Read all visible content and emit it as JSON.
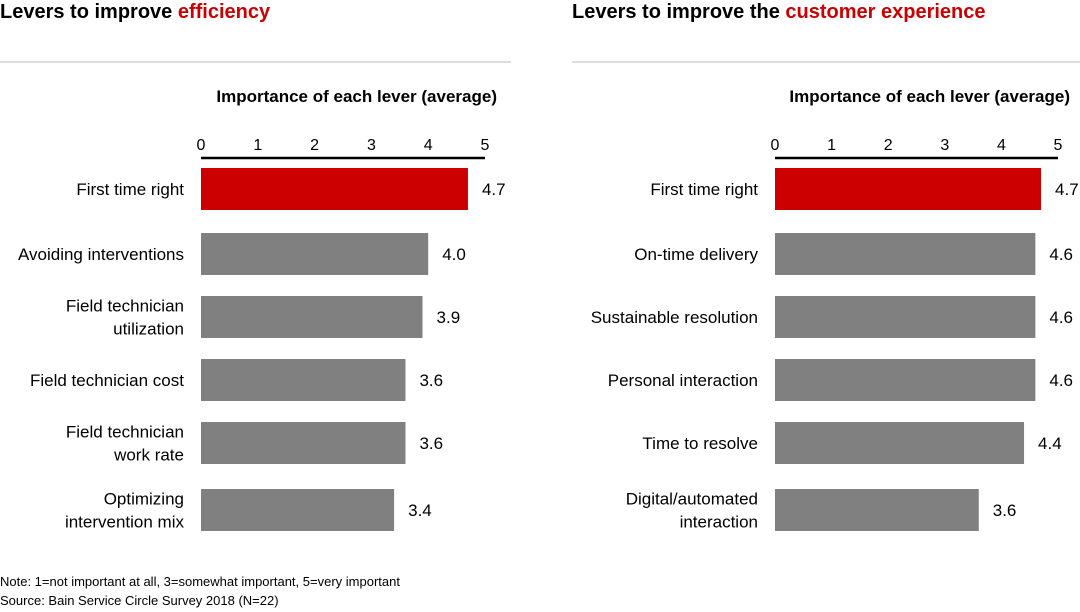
{
  "colors": {
    "highlight": "#cc0000",
    "bar": "#808080",
    "rule": "#dddddd"
  },
  "note": "Note: 1=not important at all, 3=somewhat important, 5=very important",
  "source": "Source: Bain Service Circle Survey 2018 (N=22)",
  "chart_data": [
    {
      "type": "bar",
      "orientation": "horizontal",
      "panel_title": "Levers to improve",
      "panel_title_highlight": "efficiency",
      "title": "Importance of each lever (average)",
      "xlim": [
        0,
        5
      ],
      "ticks": [
        "0",
        "1",
        "2",
        "3",
        "4",
        "5"
      ],
      "categories": [
        [
          "First time right"
        ],
        [
          "Avoiding interventions"
        ],
        [
          "Field technician",
          "utilization"
        ],
        [
          "Field technician cost"
        ],
        [
          "Field technician",
          "work rate"
        ],
        [
          "Optimizing",
          "intervention mix"
        ]
      ],
      "values": [
        4.7,
        4.0,
        3.9,
        3.6,
        3.6,
        3.4
      ],
      "labels": [
        "4.7",
        "4.0",
        "3.9",
        "3.6",
        "3.6",
        "3.4"
      ],
      "highlighted_index": 0
    },
    {
      "type": "bar",
      "orientation": "horizontal",
      "panel_title": "Levers to improve the",
      "panel_title_highlight": "customer experience",
      "title": "Importance of each lever (average)",
      "xlim": [
        0,
        5
      ],
      "ticks": [
        "0",
        "1",
        "2",
        "3",
        "4",
        "5"
      ],
      "categories": [
        [
          "First time right"
        ],
        [
          "On-time delivery"
        ],
        [
          "Sustainable resolution"
        ],
        [
          "Personal interaction"
        ],
        [
          "Time to resolve"
        ],
        [
          "Digital/automated",
          "interaction"
        ]
      ],
      "values": [
        4.7,
        4.6,
        4.6,
        4.6,
        4.4,
        3.6
      ],
      "labels": [
        "4.7",
        "4.6",
        "4.6",
        "4.6",
        "4.4",
        "3.6"
      ],
      "highlighted_index": 0
    }
  ]
}
